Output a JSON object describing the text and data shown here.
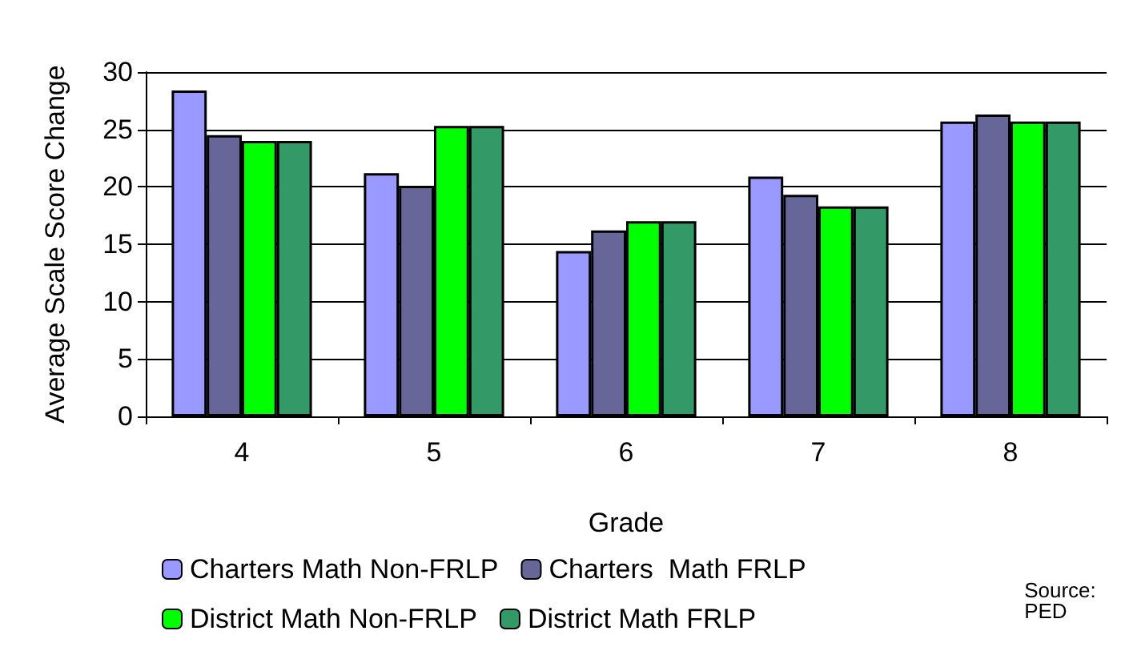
{
  "chart_data": {
    "type": "bar",
    "xlabel": "Grade",
    "ylabel": "Average Scale Score Change",
    "categories": [
      "4",
      "5",
      "6",
      "7",
      "8"
    ],
    "series": [
      {
        "name": "Charters Math Non-FRLP",
        "color": "#9999ff",
        "values": [
          28.4,
          21.2,
          14.4,
          20.9,
          25.7
        ]
      },
      {
        "name": "Charters  Math FRLP",
        "color": "#666699",
        "values": [
          24.5,
          20.1,
          16.2,
          19.3,
          26.3
        ]
      },
      {
        "name": "District Math Non-FRLP",
        "color": "#00ff00",
        "values": [
          24.0,
          25.3,
          17.0,
          18.3,
          25.7
        ]
      },
      {
        "name": "District Math FRLP",
        "color": "#339966",
        "values": [
          24.0,
          25.3,
          17.0,
          18.3,
          25.7
        ]
      }
    ],
    "ylim": [
      0,
      30
    ],
    "yticks": [
      0,
      5,
      10,
      15,
      20,
      25,
      30
    ],
    "grid": "y",
    "legend": "bottom",
    "annotations": [
      "Source: PED"
    ]
  }
}
